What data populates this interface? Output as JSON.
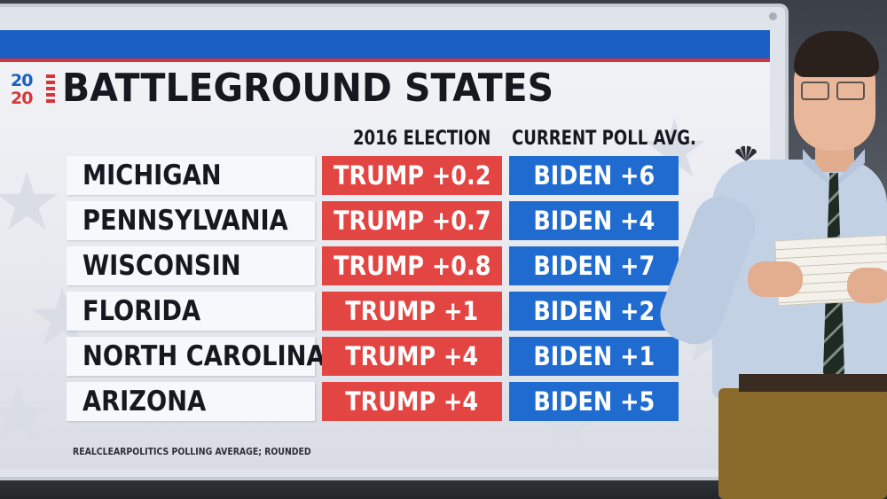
{
  "title": "BATTLEGROUND STATES",
  "logo": {
    "top": "20",
    "bottom": "20"
  },
  "headers": {
    "election_2016": "2016 ELECTION",
    "poll_avg": "CURRENT POLL AVG."
  },
  "rows": [
    {
      "state": "MICHIGAN",
      "election_2016": "TRUMP +0.2",
      "poll": "BIDEN +6"
    },
    {
      "state": "PENNSYLVANIA",
      "election_2016": "TRUMP +0.7",
      "poll": "BIDEN +4"
    },
    {
      "state": "WISCONSIN",
      "election_2016": "TRUMP +0.8",
      "poll": "BIDEN +7"
    },
    {
      "state": "FLORIDA",
      "election_2016": "TRUMP +1",
      "poll": "BIDEN +2"
    },
    {
      "state": "NORTH CAROLINA",
      "election_2016": "TRUMP +4",
      "poll": "BIDEN +1"
    },
    {
      "state": "ARIZONA",
      "election_2016": "TRUMP +4",
      "poll": "BIDEN +5"
    }
  ],
  "source": "REALCLEARPOLITICS POLLING AVERAGE; ROUNDED",
  "colors": {
    "trump": "#e24542",
    "biden": "#1f6bd0",
    "topbar": "#1b5fc4"
  },
  "icons": [
    "nbc-peacock-icon",
    "pen-icon",
    "star-icon"
  ]
}
